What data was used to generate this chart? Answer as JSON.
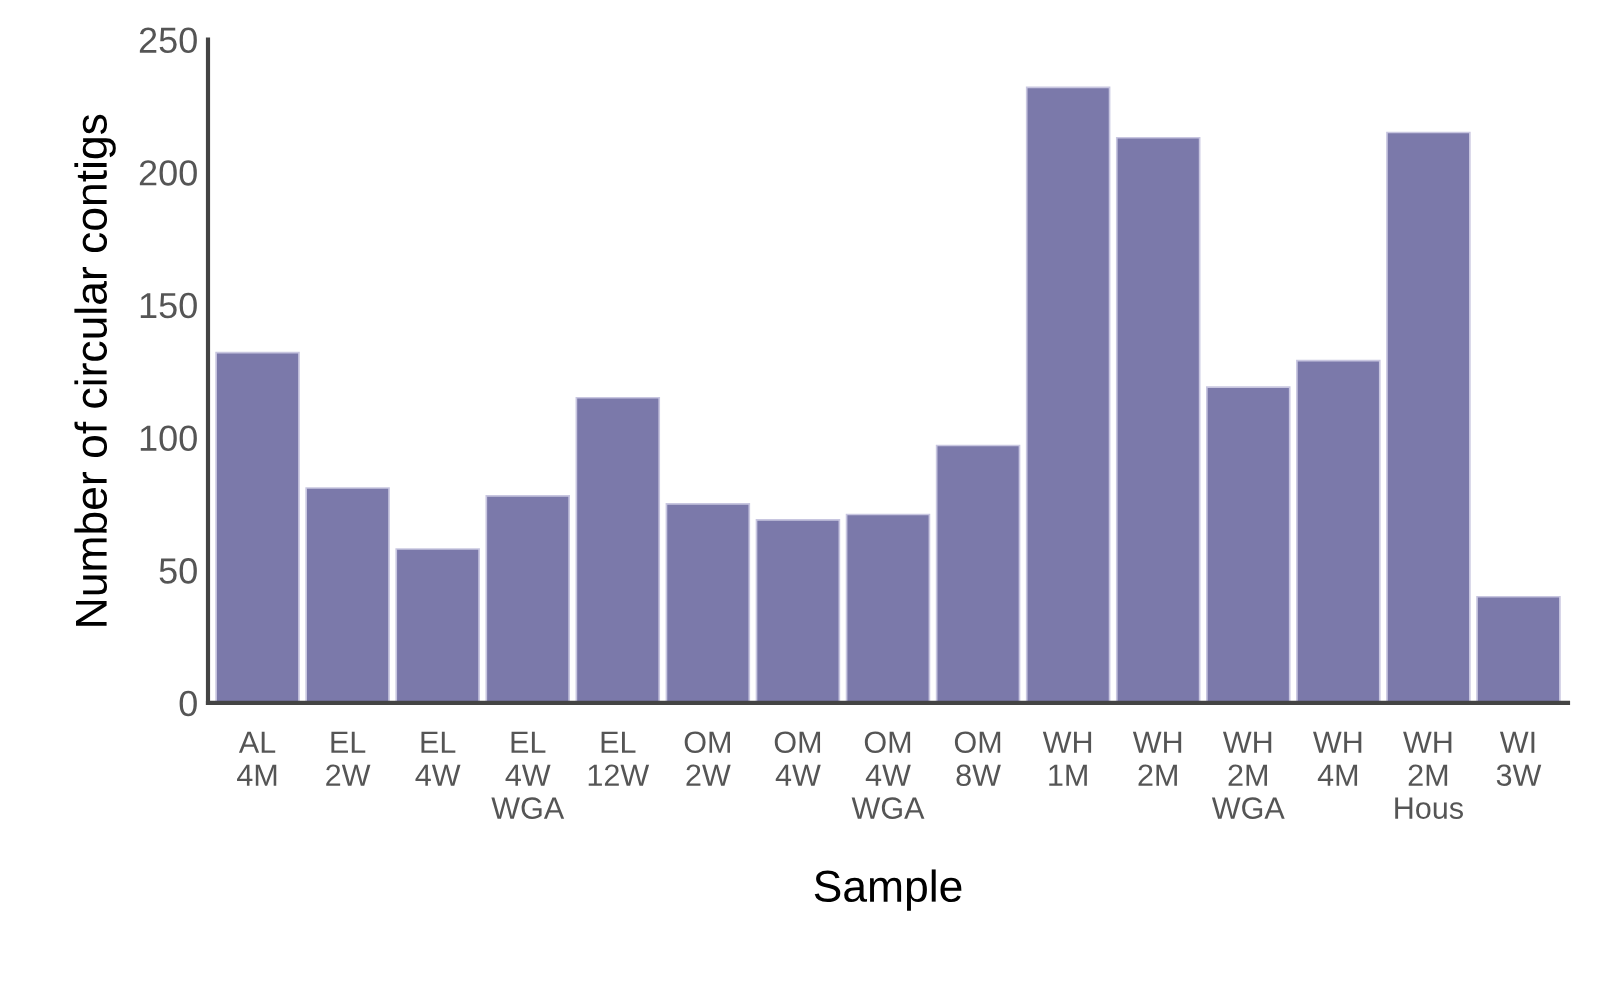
{
  "chart_data": {
    "type": "bar",
    "xlabel": "Sample",
    "ylabel": "Number of circular contigs",
    "categories": [
      "AL\n4M",
      "EL\n2W",
      "EL\n4W",
      "EL\n4W\nWGA",
      "EL\n12W",
      "OM\n2W",
      "OM\n4W",
      "OM\n4W\nWGA",
      "OM\n8W",
      "WH\n1M",
      "WH\n2M",
      "WH\n2M\nWGA",
      "WH\n4M",
      "WH\n2M\nHous",
      "WI\n3W"
    ],
    "values": [
      132,
      81,
      58,
      78,
      115,
      75,
      69,
      71,
      97,
      232,
      213,
      119,
      129,
      215,
      40
    ],
    "color": "#7b79aa",
    "ylim": [
      0,
      250
    ],
    "yticks": [
      0,
      50,
      100,
      150,
      200,
      250
    ],
    "grid": false
  }
}
